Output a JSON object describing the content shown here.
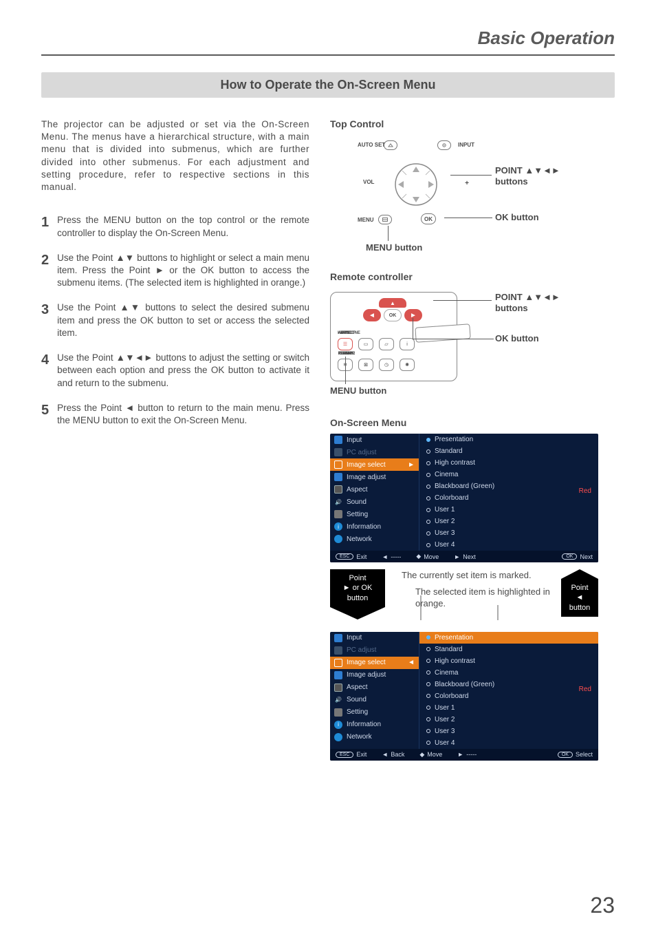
{
  "chapter": "Basic Operation",
  "section": "How to Operate the On-Screen Menu",
  "pageNumber": "23",
  "intro": "The projector can be adjusted or set via the On-Screen Menu. The menus have a hierarchical structure, with a main menu that is divided into submenus, which are further divided into other submenus. For each adjustment and setting procedure, refer to respective sections in this manual.",
  "steps": [
    {
      "n": "1",
      "text": "Press the MENU button on the top control or the remote controller to display the On-Screen Menu."
    },
    {
      "n": "2",
      "text": "Use the Point ▲▼ buttons to highlight or select a main menu item. Press the Point ► or the OK button to access the submenu items. (The selected item is highlighted in orange.)"
    },
    {
      "n": "3",
      "text": "Use the Point ▲▼ buttons to select the desired submenu item and press the OK button to set or access the selected item."
    },
    {
      "n": "4",
      "text": "Use the Point ▲▼◄► buttons to adjust the setting or switch between each option and press the OK button to activate it and return to the submenu."
    },
    {
      "n": "5",
      "text": "Press the Point ◄ button to return to the main menu. Press the MENU button to exit the On-Screen Menu."
    }
  ],
  "topControl": {
    "heading": "Top Control",
    "autoSet": "AUTO SET",
    "input": "INPUT",
    "menu": "MENU",
    "ok": "OK",
    "vol": "VOL",
    "callouts": {
      "point": "POINT ▲▼◄►\nbuttons",
      "ok": "OK button",
      "menu": "MENU button"
    }
  },
  "remote": {
    "heading": "Remote controller",
    "ok": "OK",
    "row1Labels": [
      "MENU",
      "ASPECT",
      "KEYSTONE",
      "INFO."
    ],
    "row2Labels": [
      "FREEZE",
      "BLANK",
      "P-TIMER",
      "LAMP"
    ],
    "callouts": {
      "point": "POINT ▲▼◄►\nbuttons",
      "ok": "OK button",
      "menu": "MENU button"
    }
  },
  "osm": {
    "heading": "On-Screen Menu",
    "mainItems": [
      {
        "label": "Input",
        "icon": "ic-input"
      },
      {
        "label": "PC adjust",
        "icon": "ic-pc",
        "dim": true
      },
      {
        "label": "Image select",
        "icon": "ic-img"
      },
      {
        "label": "Image adjust",
        "icon": "ic-img2"
      },
      {
        "label": "Aspect",
        "icon": "ic-aspect"
      },
      {
        "label": "Sound",
        "icon": "ic-sound"
      },
      {
        "label": "Setting",
        "icon": "ic-setting"
      },
      {
        "label": "Information",
        "icon": "ic-info"
      },
      {
        "label": "Network",
        "icon": "ic-net"
      }
    ],
    "subItems": [
      "Presentation",
      "Standard",
      "High contrast",
      "Cinema",
      "Blackboard (Green)",
      "Colorboard",
      "User 1",
      "User 2",
      "User 3",
      "User 4"
    ],
    "redLabel": "Red",
    "footer1": {
      "exit": "Exit",
      "back": "-----",
      "move": "Move",
      "next": "Next",
      "ok": "Next"
    },
    "footer2": {
      "exit": "Exit",
      "back": "Back",
      "move": "Move",
      "next": "-----",
      "ok": "Select"
    },
    "midArrowLeft": "Point\n► or OK\nbutton",
    "midArrowRight": "Point\n◄ button",
    "annot1": "The currently set item is marked.",
    "annot2": "The selected item is highlighted in orange."
  },
  "colors": {
    "orange": "#e87d1a",
    "navy": "#0a1b3a",
    "red": "#ff4d4d",
    "remoteRed": "#d9534f"
  }
}
